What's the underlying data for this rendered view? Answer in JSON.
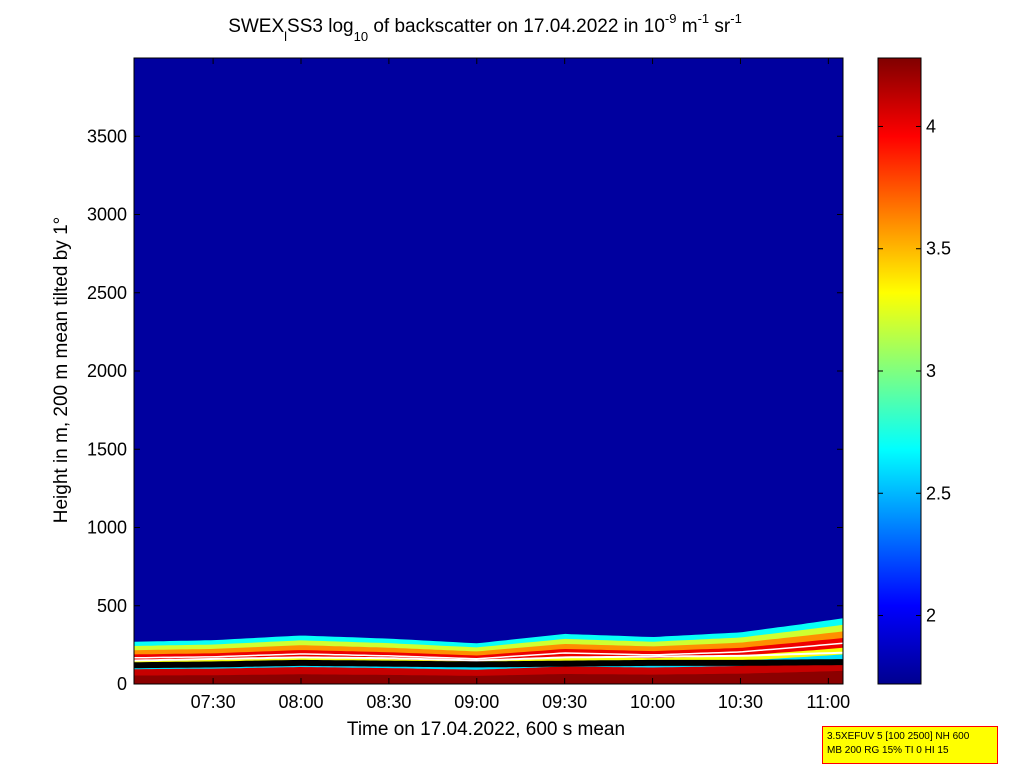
{
  "title": {
    "prefix": "SWEX",
    "sub_l": "l",
    "mid": "SS3 log",
    "sub_10": "10",
    "rest": " of backscatter on 17.04.2022 in 10",
    "sup_m9": "-9",
    "unit_m": " m",
    "sup_m1a": "-1",
    "unit_sr": " sr",
    "sup_m1b": "-1"
  },
  "xlabel": "Time on 17.04.2022, 600 s mean",
  "ylabel": "Height in m, 200 m mean tilted by 1°",
  "info_lines": [
    "3.5XEFUV 5 [100 2500] NH 600",
    "MB 200 RG 15% TI 0 HI 15"
  ],
  "chart_data": {
    "type": "heatmap",
    "x_axis": {
      "range": [
        "07:03",
        "11:05"
      ],
      "ticks": [
        "07:30",
        "08:00",
        "08:30",
        "09:00",
        "09:30",
        "10:00",
        "10:30",
        "11:00"
      ]
    },
    "y_axis": {
      "range": [
        0,
        4000
      ],
      "ticks": [
        0,
        500,
        1000,
        1500,
        2000,
        2500,
        3000,
        3500
      ]
    },
    "colorbar": {
      "range": [
        1.72,
        4.28
      ],
      "ticks": [
        2,
        2.5,
        3,
        3.5,
        4
      ],
      "tick_labels": [
        "2",
        "2.5",
        "3",
        "3.5",
        "4"
      ],
      "colormap": "jet"
    },
    "background_value": 1.8,
    "layer_top_height": {
      "times": [
        "07:03",
        "07:30",
        "08:00",
        "08:30",
        "09:00",
        "09:30",
        "10:00",
        "10:30",
        "10:50",
        "11:05"
      ],
      "values": [
        270,
        280,
        310,
        290,
        260,
        320,
        300,
        330,
        380,
        420
      ]
    },
    "white_line_height": {
      "times": [
        "07:03",
        "07:30",
        "08:00",
        "08:30",
        "09:00",
        "09:30",
        "10:00",
        "10:30",
        "11:05"
      ],
      "values": [
        150,
        160,
        170,
        165,
        150,
        170,
        175,
        180,
        200
      ]
    },
    "black_line_height": {
      "times": [
        "07:03",
        "07:30",
        "08:00",
        "08:30",
        "09:00",
        "09:30",
        "10:00",
        "10:30",
        "11:05"
      ],
      "values": [
        120,
        125,
        135,
        130,
        125,
        130,
        135,
        135,
        140
      ]
    }
  }
}
